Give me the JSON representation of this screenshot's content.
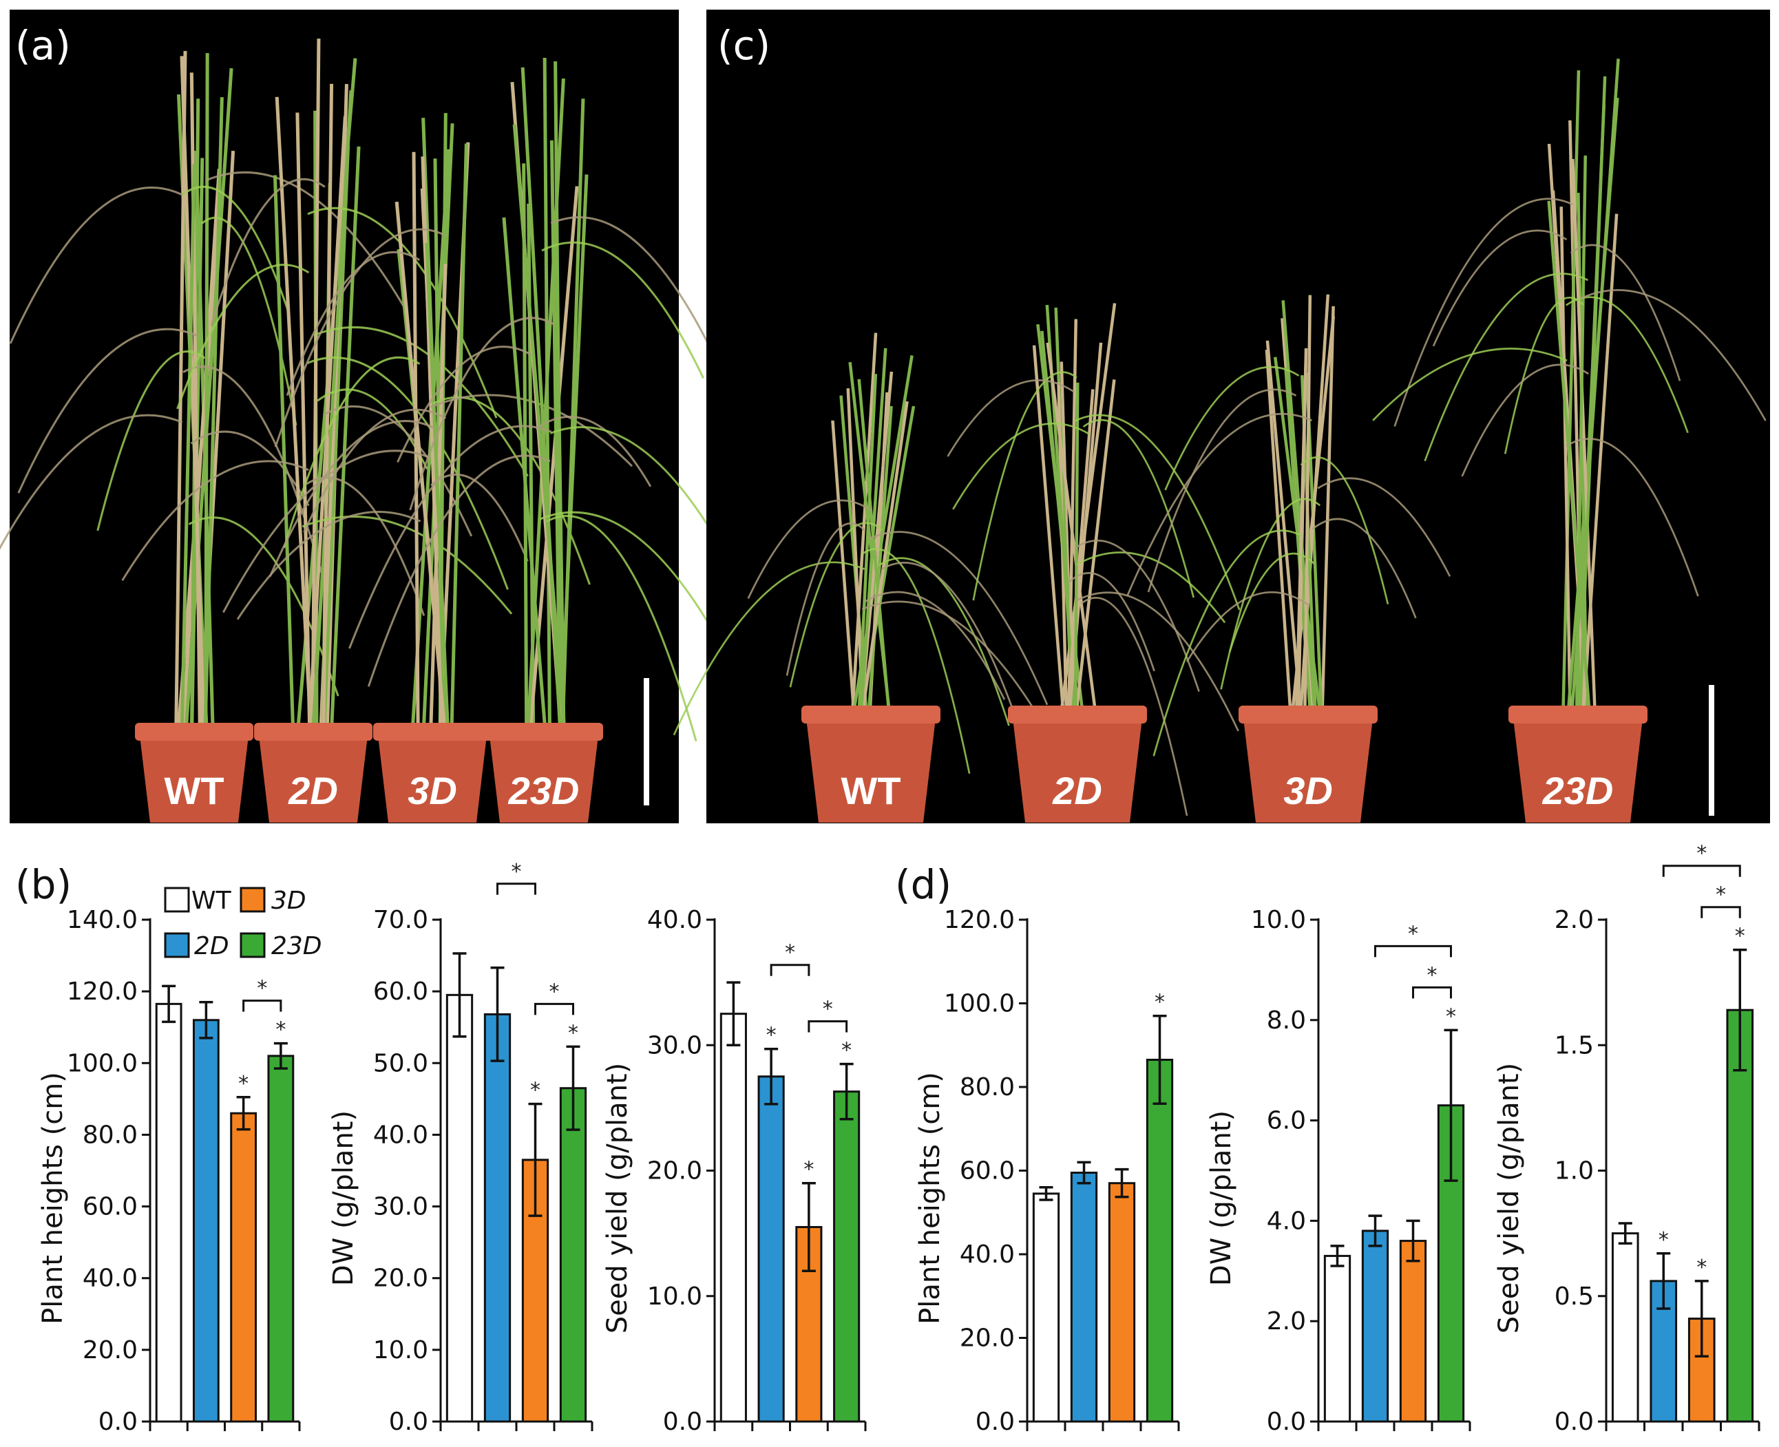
{
  "colors": {
    "WT": "#ffffff",
    "2D": "#2b93d1",
    "3D": "#f58220",
    "23D": "#3aaa35",
    "photo_bg": "#000000",
    "pot": "#c8553b",
    "stem_green": "#7fb24a",
    "stem_straw": "#c9b48a",
    "leaf": "#9ccc55"
  },
  "panels": {
    "a": {
      "letter": "(a)",
      "pot_labels": [
        "WT",
        "2D",
        "3D",
        "23D"
      ],
      "scale_bar": true
    },
    "c": {
      "letter": "(c)",
      "pot_labels": [
        "WT",
        "2D",
        "3D",
        "23D"
      ],
      "scale_bar": true
    },
    "b": {
      "letter": "(b)"
    },
    "d": {
      "letter": "(d)"
    }
  },
  "legend": {
    "items": [
      {
        "key": "WT",
        "label": "WT",
        "italic": false
      },
      {
        "key": "3D",
        "label": "3D",
        "italic": true
      },
      {
        "key": "2D",
        "label": "2D",
        "italic": true
      },
      {
        "key": "23D",
        "label": "23D",
        "italic": true
      }
    ]
  },
  "chart_data": [
    {
      "id": "b1",
      "panel": "b",
      "type": "bar",
      "ylabel": "Plant heights (cm)",
      "ylim": [
        0,
        140
      ],
      "yticks": [
        "0.0",
        "20.0",
        "40.0",
        "60.0",
        "80.0",
        "100.0",
        "120.0",
        "140.0"
      ],
      "categories": [
        "WT",
        "2D",
        "3D",
        "23D"
      ],
      "values": [
        116.5,
        112.0,
        86.0,
        102.0
      ],
      "errors": [
        5.0,
        5.0,
        4.5,
        3.5
      ],
      "stars": [
        false,
        false,
        true,
        true
      ],
      "brackets": [
        {
          "from": 2,
          "to": 3,
          "level": 0,
          "label": "*"
        }
      ]
    },
    {
      "id": "b2",
      "panel": "b",
      "type": "bar",
      "ylabel": "DW (g/plant)",
      "ylim": [
        0,
        70
      ],
      "yticks": [
        "0.0",
        "10.0",
        "20.0",
        "30.0",
        "40.0",
        "50.0",
        "60.0",
        "70.0"
      ],
      "categories": [
        "WT",
        "2D",
        "3D",
        "23D"
      ],
      "values": [
        59.5,
        56.8,
        36.5,
        46.5
      ],
      "errors": [
        5.8,
        6.5,
        7.8,
        5.8
      ],
      "stars": [
        false,
        false,
        true,
        true
      ],
      "brackets": [
        {
          "from": 1,
          "to": 2,
          "level": 1,
          "label": "*"
        },
        {
          "from": 2,
          "to": 3,
          "level": 0,
          "label": "*"
        }
      ]
    },
    {
      "id": "b3",
      "panel": "b",
      "type": "bar",
      "ylabel": "Seed yield (g/plant)",
      "ylim": [
        0,
        40
      ],
      "yticks": [
        "0.0",
        "10.0",
        "20.0",
        "30.0",
        "40.0"
      ],
      "categories": [
        "WT",
        "2D",
        "3D",
        "23D"
      ],
      "values": [
        32.5,
        27.5,
        15.5,
        26.3
      ],
      "errors": [
        2.5,
        2.2,
        3.5,
        2.2
      ],
      "stars": [
        false,
        true,
        true,
        true
      ],
      "brackets": [
        {
          "from": 1,
          "to": 2,
          "level": 1,
          "label": "*"
        },
        {
          "from": 2,
          "to": 3,
          "level": 0,
          "label": "*"
        }
      ]
    },
    {
      "id": "d1",
      "panel": "d",
      "type": "bar",
      "ylabel": "Plant heights (cm)",
      "ylim": [
        0,
        120
      ],
      "yticks": [
        "0.0",
        "20.0",
        "40.0",
        "60.0",
        "80.0",
        "100.0",
        "120.0"
      ],
      "categories": [
        "WT",
        "2D",
        "3D",
        "23D"
      ],
      "values": [
        54.5,
        59.5,
        57.0,
        86.5
      ],
      "errors": [
        1.5,
        2.5,
        3.3,
        10.5
      ],
      "stars": [
        false,
        false,
        false,
        true
      ],
      "brackets": []
    },
    {
      "id": "d2",
      "panel": "d",
      "type": "bar",
      "ylabel": "DW (g/plant)",
      "ylim": [
        0,
        10
      ],
      "yticks": [
        "0.0",
        "2.0",
        "4.0",
        "6.0",
        "8.0",
        "10.0"
      ],
      "categories": [
        "WT",
        "2D",
        "3D",
        "23D"
      ],
      "values": [
        3.3,
        3.8,
        3.6,
        6.3
      ],
      "errors": [
        0.2,
        0.3,
        0.4,
        1.5
      ],
      "stars": [
        false,
        false,
        false,
        true
      ],
      "brackets": [
        {
          "from": 2,
          "to": 3,
          "level": 0,
          "label": "*"
        },
        {
          "from": 1,
          "to": 3,
          "level": 1,
          "label": "*"
        }
      ]
    },
    {
      "id": "d3",
      "panel": "d",
      "type": "bar",
      "ylabel": "Seed yield (g/plant)",
      "ylim": [
        0,
        2.0
      ],
      "yticks": [
        "0.0",
        "0.5",
        "1.0",
        "1.5",
        "2.0"
      ],
      "categories": [
        "WT",
        "2D",
        "3D",
        "23D"
      ],
      "values": [
        0.75,
        0.56,
        0.41,
        1.64
      ],
      "errors": [
        0.04,
        0.11,
        0.15,
        0.24
      ],
      "stars": [
        false,
        true,
        true,
        true
      ],
      "brackets": [
        {
          "from": 2,
          "to": 3,
          "level": 0,
          "label": "*"
        },
        {
          "from": 1,
          "to": 3,
          "level": 1,
          "label": "*"
        }
      ]
    }
  ]
}
